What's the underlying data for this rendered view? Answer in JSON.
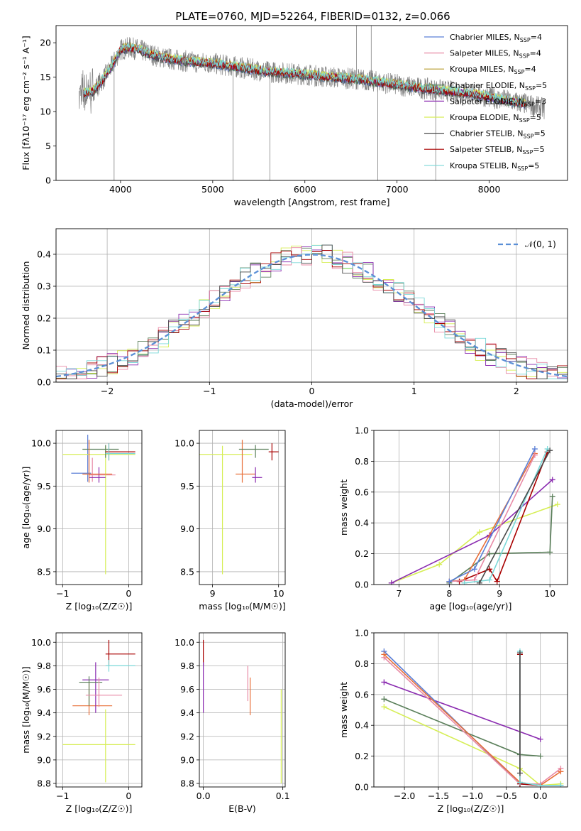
{
  "figure": {
    "title": "PLATE=0760, MJD=52264, FIBERID=0132, z=0.066"
  },
  "colors": {
    "chabrier_miles": "#5b7fd6",
    "salpeter_miles": "#e88aa6",
    "kroupa_miles": "#b59a2a",
    "chabrier_elodie": "#5a7f5a",
    "salpeter_elodie": "#8a2bb0",
    "kroupa_elodie": "#d6ee55",
    "chabrier_stelib": "#4a4a4a",
    "salpeter_stelib": "#a80000",
    "kroupa_stelib": "#7ad8d8",
    "salpeter_miles_fit": "#e8703a",
    "data_spectrum": "#808080",
    "gaussian": "#5a8fd6"
  },
  "chart_data": [
    {
      "id": "spectrum",
      "type": "line",
      "title": "PLATE=0760, MJD=52264, FIBERID=0132, z=0.066",
      "xlabel": "wavelength [Angstrom, rest frame]",
      "ylabel": "Flux [fλ10⁻¹⁷ erg cm⁻² s⁻¹ A⁻¹]",
      "xlim": [
        3300,
        8850
      ],
      "ylim": [
        0,
        22.5
      ],
      "xticks": [
        4000,
        5000,
        6000,
        7000,
        8000
      ],
      "yticks": [
        0,
        5,
        10,
        15,
        20
      ],
      "legend_position": "top-right",
      "legend": [
        "Chabrier MILES, N_SSP=4",
        "Salpeter MILES, N_SSP=4",
        "Kroupa MILES, N_SSP=4",
        "Chabrier ELODIE, N_SSP=5",
        "Salpeter ELODIE, N_SSP=3",
        "Kroupa ELODIE, N_SSP=5",
        "Chabrier STELIB, N_SSP=5",
        "Salpeter STELIB, N_SSP=5",
        "Kroupa STELIB, N_SSP=5"
      ],
      "continuum": {
        "x": [
          3550,
          3700,
          3800,
          3900,
          4000,
          4100,
          4200,
          4300,
          4400,
          4600,
          4800,
          5000,
          5200,
          5400,
          5600,
          5800,
          6000,
          6200,
          6400,
          6600,
          6800,
          7000,
          7200,
          7400,
          7600,
          7800,
          8000,
          8200,
          8400,
          8600
        ],
        "y": [
          12.5,
          13.0,
          14.5,
          16.5,
          19.0,
          19.3,
          19.0,
          18.5,
          18.0,
          17.5,
          17.2,
          17.0,
          16.6,
          16.2,
          15.8,
          15.6,
          15.4,
          15.1,
          14.9,
          14.7,
          14.3,
          13.9,
          13.5,
          13.2,
          12.9,
          12.6,
          12.1,
          11.6,
          11.1,
          10.4
        ]
      }
    },
    {
      "id": "residuals",
      "type": "line",
      "xlabel": "(data-model)/error",
      "ylabel": "Normed distribution",
      "xlim": [
        -2.5,
        2.5
      ],
      "ylim": [
        0,
        0.48
      ],
      "xticks": [
        -2,
        -1,
        0,
        1,
        2
      ],
      "yticks": [
        0.0,
        0.1,
        0.2,
        0.3,
        0.4
      ],
      "legend_position": "top-right",
      "legend": [
        "𝒩(0, 1)"
      ]
    },
    {
      "id": "age_vs_Z",
      "type": "scatter",
      "xlabel": "Z [log₁₀(Z/Z☉)]",
      "ylabel": "age  [log₁₀(age/yr)]",
      "xlim": [
        -1.1,
        0.2
      ],
      "ylim": [
        8.35,
        10.15
      ],
      "xticks": [
        -1,
        0
      ],
      "yticks": [
        8.5,
        9.0,
        9.5,
        10.0
      ],
      "points": [
        {
          "series": "chabrier_miles",
          "x": -0.62,
          "y": 9.65,
          "xerr": [
            0.25,
            0.05
          ],
          "yerr": [
            0.1,
            0.45
          ]
        },
        {
          "series": "salpeter_miles",
          "x": -0.55,
          "y": 9.63,
          "xerr": [
            0.05,
            0.35
          ],
          "yerr": [
            0.08,
            0.2
          ]
        },
        {
          "series": "kroupa_elodie",
          "x": -0.35,
          "y": 9.87,
          "xerr": [
            0.65,
            0.45
          ],
          "yerr": [
            1.4,
            0.1
          ]
        },
        {
          "series": "salpeter_elodie",
          "x": -0.45,
          "y": 9.6,
          "xerr": [
            0.15,
            0.1
          ],
          "yerr": [
            0.06,
            0.12
          ]
        },
        {
          "series": "chabrier_elodie",
          "x": -0.35,
          "y": 9.93,
          "xerr": [
            0.35,
            0.2
          ],
          "yerr": [
            0.1,
            0.05
          ]
        },
        {
          "series": "salpeter_stelib",
          "x": -0.3,
          "y": 9.9,
          "xerr": [
            0.05,
            0.4
          ],
          "yerr": [
            0.1,
            0.1
          ]
        },
        {
          "series": "kroupa_stelib",
          "x": -0.3,
          "y": 9.88,
          "xerr": [
            0.05,
            0.4
          ],
          "yerr": [
            0.08,
            0.12
          ]
        },
        {
          "series": "salpeter_miles_fit",
          "x": -0.6,
          "y": 9.64,
          "xerr": [
            0.1,
            0.35
          ],
          "yerr": [
            0.1,
            0.4
          ]
        }
      ]
    },
    {
      "id": "age_vs_mass",
      "type": "scatter",
      "xlabel": "mass [log₁₀(M/M☉)]",
      "ylabel": "",
      "xlim": [
        8.8,
        10.1
      ],
      "ylim": [
        8.35,
        10.15
      ],
      "xticks": [
        9,
        10
      ],
      "yticks": [
        8.5,
        9.0,
        9.5,
        10.0
      ],
      "points": [
        {
          "series": "kroupa_elodie",
          "x": 9.15,
          "y": 9.87,
          "xerr": [
            0.35,
            0.45
          ],
          "yerr": [
            1.4,
            0.1
          ]
        },
        {
          "series": "salpeter_miles_fit",
          "x": 9.45,
          "y": 9.64,
          "xerr": [
            0.1,
            0.2
          ],
          "yerr": [
            0.1,
            0.4
          ]
        },
        {
          "series": "chabrier_elodie",
          "x": 9.65,
          "y": 9.93,
          "xerr": [
            0.25,
            0.2
          ],
          "yerr": [
            0.1,
            0.05
          ]
        },
        {
          "series": "salpeter_stelib",
          "x": 9.9,
          "y": 9.9,
          "xerr": [
            0.05,
            0.1
          ],
          "yerr": [
            0.1,
            0.1
          ]
        },
        {
          "series": "salpeter_elodie",
          "x": 9.65,
          "y": 9.6,
          "xerr": [
            0.05,
            0.1
          ],
          "yerr": [
            0.06,
            0.12
          ]
        }
      ]
    },
    {
      "id": "massweight_vs_age",
      "type": "line",
      "xlabel": "age  [log₁₀(age/yr)]",
      "ylabel": "mass weight",
      "xlim": [
        6.5,
        10.35
      ],
      "ylim": [
        0,
        1.0
      ],
      "xticks": [
        7,
        8,
        9,
        10
      ],
      "yticks": [
        0.0,
        0.2,
        0.4,
        0.6,
        0.8,
        1.0
      ],
      "series": [
        {
          "key": "kroupa_elodie",
          "x": [
            6.85,
            7.8,
            8.6,
            10.15
          ],
          "y": [
            0.01,
            0.13,
            0.34,
            0.52
          ]
        },
        {
          "key": "salpeter_elodie",
          "x": [
            6.85,
            8.8,
            10.05
          ],
          "y": [
            0.01,
            0.32,
            0.68
          ]
        },
        {
          "key": "chabrier_elodie",
          "x": [
            8.0,
            8.8,
            10.0,
            10.05
          ],
          "y": [
            0.01,
            0.2,
            0.21,
            0.57
          ]
        },
        {
          "key": "salpeter_stelib",
          "x": [
            8.2,
            8.8,
            8.95,
            9.95
          ],
          "y": [
            0.02,
            0.1,
            0.02,
            0.86
          ]
        },
        {
          "key": "salpeter_miles_fit",
          "x": [
            8.0,
            8.3,
            9.7
          ],
          "y": [
            0.02,
            0.03,
            0.85
          ]
        },
        {
          "key": "salpeter_miles",
          "x": [
            8.0,
            8.5,
            9.7
          ],
          "y": [
            0.02,
            0.03,
            0.84
          ]
        },
        {
          "key": "chabrier_miles",
          "x": [
            8.0,
            8.5,
            9.7
          ],
          "y": [
            0.02,
            0.1,
            0.88
          ]
        },
        {
          "key": "kroupa_stelib",
          "x": [
            8.3,
            8.8,
            9.95
          ],
          "y": [
            0.01,
            0.03,
            0.88
          ]
        },
        {
          "key": "chabrier_stelib",
          "x": [
            8.6,
            10.0
          ],
          "y": [
            0.01,
            0.87
          ]
        }
      ]
    },
    {
      "id": "mass_vs_Z",
      "type": "scatter",
      "xlabel": "Z [log₁₀(Z/Z☉)]",
      "ylabel": "mass [log₁₀(M/M☉)]",
      "xlim": [
        -1.1,
        0.2
      ],
      "ylim": [
        8.77,
        10.08
      ],
      "xticks": [
        -1,
        0
      ],
      "yticks": [
        8.8,
        9.0,
        9.2,
        9.4,
        9.6,
        9.8,
        10.0
      ],
      "points": [
        {
          "series": "kroupa_elodie",
          "x": -0.35,
          "y": 9.13,
          "xerr": [
            0.65,
            0.45
          ],
          "yerr": [
            0.32,
            0.3
          ]
        },
        {
          "series": "salpeter_miles_fit",
          "x": -0.6,
          "y": 9.46,
          "xerr": [
            0.25,
            0.35
          ],
          "yerr": [
            0.08,
            0.2
          ]
        },
        {
          "series": "salpeter_elodie",
          "x": -0.5,
          "y": 9.68,
          "xerr": [
            0.2,
            0.2
          ],
          "yerr": [
            0.28,
            0.15
          ]
        },
        {
          "series": "chabrier_elodie",
          "x": -0.6,
          "y": 9.66,
          "xerr": [
            0.15,
            0.2
          ],
          "yerr": [
            0.2,
            0.05
          ]
        },
        {
          "series": "salpeter_stelib",
          "x": -0.3,
          "y": 9.9,
          "xerr": [
            0.05,
            0.4
          ],
          "yerr": [
            0.1,
            0.12
          ]
        },
        {
          "series": "kroupa_stelib",
          "x": -0.3,
          "y": 9.8,
          "xerr": [
            0.05,
            0.4
          ],
          "yerr": [
            0.05,
            0.05
          ]
        },
        {
          "series": "salpeter_miles",
          "x": -0.45,
          "y": 9.55,
          "xerr": [
            0.2,
            0.35
          ],
          "yerr": [
            0.1,
            0.15
          ]
        }
      ]
    },
    {
      "id": "mass_vs_ebv",
      "type": "scatter",
      "xlabel": "E(B-V)",
      "ylabel": "",
      "xlim": [
        -0.005,
        0.103
      ],
      "ylim": [
        8.77,
        10.08
      ],
      "xticks": [
        0.0,
        0.1
      ],
      "yticks": [
        8.8,
        9.0,
        9.2,
        9.4,
        9.6,
        9.8,
        10.0
      ],
      "points": [
        {
          "series": "salpeter_stelib",
          "x": 0.0,
          "y": 9.9,
          "xerr": [
            0,
            0
          ],
          "yerr": [
            0.1,
            0.12
          ]
        },
        {
          "series": "salpeter_elodie",
          "x": 0.0,
          "y": 9.68,
          "xerr": [
            0,
            0
          ],
          "yerr": [
            0.28,
            0.15
          ]
        },
        {
          "series": "salpeter_miles",
          "x": 0.056,
          "y": 9.65,
          "xerr": [
            0,
            0
          ],
          "yerr": [
            0.15,
            0.15
          ]
        },
        {
          "series": "salpeter_miles_fit",
          "x": 0.059,
          "y": 9.55,
          "xerr": [
            0,
            0
          ],
          "yerr": [
            0.17,
            0.15
          ]
        },
        {
          "series": "kroupa_elodie",
          "x": 0.098,
          "y": 9.2,
          "xerr": [
            0,
            0
          ],
          "yerr": [
            0.4,
            0.4
          ]
        }
      ]
    },
    {
      "id": "massweight_vs_Z",
      "type": "line",
      "xlabel": "Z [log₁₀(Z/Z☉)]",
      "ylabel": "mass weight",
      "xlim": [
        -2.45,
        0.4
      ],
      "ylim": [
        0,
        1.0
      ],
      "xticks": [
        -2.0,
        -1.5,
        -1.0,
        -0.5,
        0.0
      ],
      "yticks": [
        0.0,
        0.2,
        0.4,
        0.6,
        0.8,
        1.0
      ],
      "series": [
        {
          "key": "salpeter_elodie",
          "x": [
            -2.3,
            0.0
          ],
          "y": [
            0.68,
            0.31
          ]
        },
        {
          "key": "chabrier_elodie",
          "x": [
            -2.3,
            -0.3,
            0.0
          ],
          "y": [
            0.57,
            0.21,
            0.2
          ]
        },
        {
          "key": "kroupa_elodie",
          "x": [
            -2.3,
            -0.3,
            0.0,
            0.3
          ],
          "y": [
            0.52,
            0.12,
            0.01,
            0.02
          ]
        },
        {
          "key": "chabrier_miles",
          "x": [
            -2.3,
            -0.3,
            0.0,
            0.3
          ],
          "y": [
            0.88,
            0.02,
            0.01,
            0.01
          ]
        },
        {
          "key": "salpeter_miles",
          "x": [
            -2.3,
            -0.3,
            0.0,
            0.3
          ],
          "y": [
            0.84,
            0.02,
            0.02,
            0.12
          ]
        },
        {
          "key": "salpeter_miles_fit",
          "x": [
            -2.3,
            -0.3,
            0.0,
            0.3
          ],
          "y": [
            0.86,
            0.03,
            0.01,
            0.1
          ]
        },
        {
          "key": "salpeter_stelib",
          "x": [
            -0.3,
            -0.3,
            0.0
          ],
          "y": [
            0.86,
            0.02,
            0.01
          ]
        },
        {
          "key": "kroupa_stelib",
          "x": [
            -0.3,
            -0.3,
            0.0,
            0.3
          ],
          "y": [
            0.88,
            0.03,
            0.01,
            0.01
          ]
        },
        {
          "key": "chabrier_stelib",
          "x": [
            -0.3,
            -0.3
          ],
          "y": [
            0.87,
            0.09
          ]
        }
      ]
    }
  ]
}
